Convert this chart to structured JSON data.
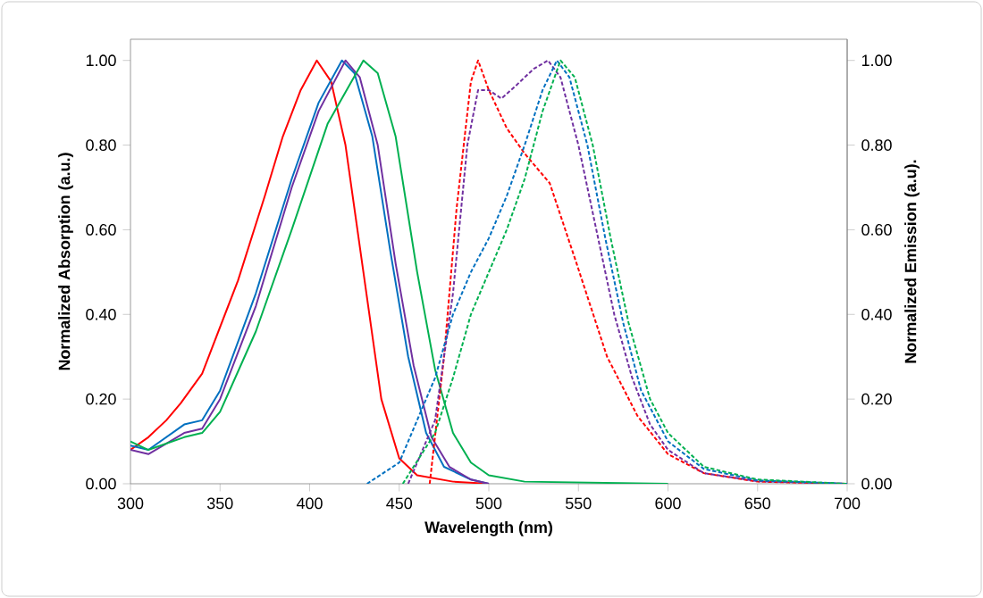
{
  "chart_data": {
    "type": "line",
    "xlabel": "Wavelength (nm)",
    "ylabel": "Normalized Absorption (a.u.)",
    "y2label": "Normalized Emission (a.u).",
    "xlim": [
      300,
      700
    ],
    "xticks": [
      300,
      350,
      400,
      450,
      500,
      550,
      600,
      650,
      700
    ],
    "ylim": [
      0,
      1.05
    ],
    "yticks": [
      {
        "value": 0,
        "label": "0.00"
      },
      {
        "value": 0.2,
        "label": "0.20"
      },
      {
        "value": 0.4,
        "label": "0.40"
      },
      {
        "value": 0.6,
        "label": "0.60"
      },
      {
        "value": 0.8,
        "label": "0.80"
      },
      {
        "value": 1,
        "label": "1.00"
      }
    ],
    "y2lim": [
      0,
      1.05
    ],
    "y2ticks": [
      {
        "value": 0,
        "label": "0.00"
      },
      {
        "value": 0.2,
        "label": "0.20"
      },
      {
        "value": 0.4,
        "label": "0.40"
      },
      {
        "value": 0.6,
        "label": "0.60"
      },
      {
        "value": 0.8,
        "label": "0.80"
      },
      {
        "value": 1,
        "label": "1.00"
      }
    ],
    "grid": false,
    "marker": "none",
    "series": [
      {
        "color": "#ff0000",
        "line_style": "solid",
        "x": [
          300,
          310,
          320,
          328,
          340,
          360,
          375,
          385,
          395,
          404,
          412,
          420,
          430,
          440,
          450,
          460,
          480,
          500
        ],
        "values": [
          0.08,
          0.11,
          0.15,
          0.19,
          0.26,
          0.48,
          0.68,
          0.82,
          0.93,
          1.0,
          0.95,
          0.8,
          0.5,
          0.2,
          0.06,
          0.02,
          0.005,
          0
        ]
      },
      {
        "color": "#0070c0",
        "line_style": "solid",
        "x": [
          300,
          310,
          330,
          340,
          350,
          370,
          390,
          405,
          418,
          425,
          435,
          445,
          455,
          465,
          475,
          490,
          500
        ],
        "values": [
          0.09,
          0.08,
          0.14,
          0.15,
          0.22,
          0.45,
          0.72,
          0.9,
          1.0,
          0.97,
          0.82,
          0.55,
          0.3,
          0.12,
          0.04,
          0.01,
          0
        ]
      },
      {
        "color": "#7030a0",
        "line_style": "solid",
        "x": [
          300,
          310,
          330,
          340,
          350,
          370,
          390,
          405,
          420,
          428,
          438,
          448,
          458,
          468,
          478,
          490,
          500
        ],
        "values": [
          0.08,
          0.07,
          0.12,
          0.13,
          0.2,
          0.42,
          0.7,
          0.88,
          1.0,
          0.96,
          0.8,
          0.52,
          0.28,
          0.11,
          0.04,
          0.01,
          0
        ]
      },
      {
        "color": "#00b050",
        "line_style": "solid",
        "x": [
          300,
          310,
          330,
          340,
          350,
          370,
          390,
          410,
          430,
          438,
          448,
          460,
          470,
          480,
          490,
          500,
          520,
          600
        ],
        "values": [
          0.1,
          0.08,
          0.11,
          0.12,
          0.17,
          0.36,
          0.6,
          0.85,
          1.0,
          0.97,
          0.82,
          0.5,
          0.27,
          0.12,
          0.05,
          0.02,
          0.005,
          0
        ]
      },
      {
        "color": "#ff0000",
        "line_style": "dashed",
        "axis": "y2",
        "x": [
          467,
          475,
          482,
          490,
          494,
          500,
          510,
          520,
          534,
          549,
          566,
          583,
          600,
          620,
          650,
          700
        ],
        "values": [
          0,
          0.3,
          0.65,
          0.95,
          1.0,
          0.93,
          0.84,
          0.78,
          0.71,
          0.52,
          0.3,
          0.16,
          0.07,
          0.025,
          0.005,
          0
        ]
      },
      {
        "color": "#7030a0",
        "line_style": "dashed",
        "axis": "y2",
        "x": [
          455,
          470,
          480,
          488,
          494,
          500,
          507,
          515,
          525,
          533,
          540,
          550,
          560,
          570,
          580,
          590,
          600,
          620,
          650,
          700
        ],
        "values": [
          0,
          0.15,
          0.45,
          0.8,
          0.93,
          0.93,
          0.91,
          0.94,
          0.98,
          1.0,
          0.96,
          0.8,
          0.6,
          0.4,
          0.25,
          0.14,
          0.08,
          0.025,
          0.006,
          0
        ]
      },
      {
        "color": "#0070c0",
        "line_style": "dashed",
        "axis": "y2",
        "x": [
          432,
          450,
          470,
          480,
          490,
          500,
          510,
          520,
          530,
          538,
          545,
          555,
          565,
          575,
          585,
          600,
          620,
          650,
          700
        ],
        "values": [
          0,
          0.05,
          0.25,
          0.4,
          0.5,
          0.58,
          0.68,
          0.8,
          0.93,
          1.0,
          0.96,
          0.8,
          0.58,
          0.38,
          0.22,
          0.1,
          0.035,
          0.008,
          0
        ]
      },
      {
        "color": "#00b050",
        "line_style": "dashed",
        "axis": "y2",
        "x": [
          452,
          470,
          480,
          490,
          500,
          510,
          520,
          530,
          540,
          548,
          558,
          568,
          578,
          590,
          600,
          620,
          650,
          700
        ],
        "values": [
          0,
          0.12,
          0.25,
          0.4,
          0.5,
          0.6,
          0.72,
          0.88,
          1.0,
          0.96,
          0.8,
          0.58,
          0.38,
          0.2,
          0.12,
          0.04,
          0.01,
          0
        ]
      }
    ]
  }
}
